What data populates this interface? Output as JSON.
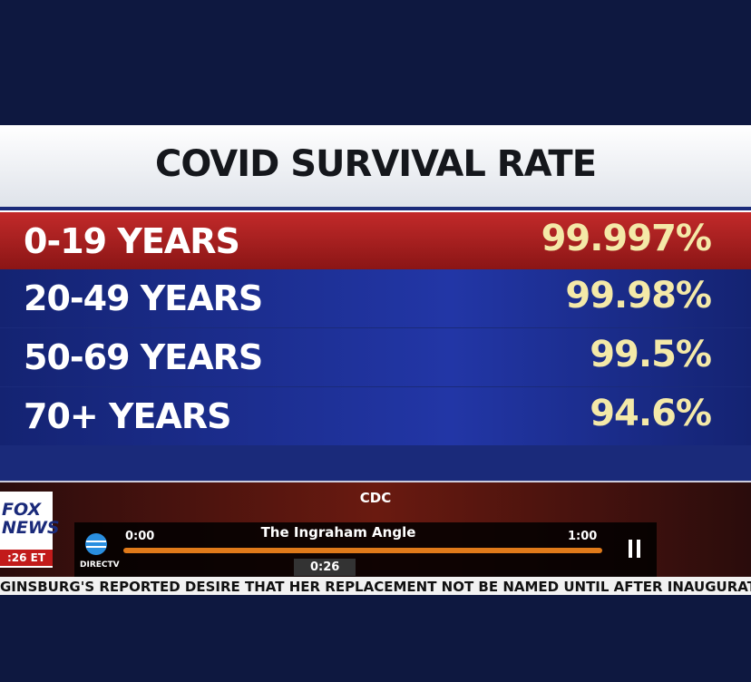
{
  "graphic": {
    "title": "COVID SURVIVAL RATE",
    "table": {
      "rows": [
        [
          "0-19 YEARS",
          "99.997%"
        ],
        [
          "20-49 YEARS",
          "99.98%"
        ],
        [
          "50-69 YEARS",
          "99.5%"
        ],
        [
          "70+ YEARS",
          "94.6%"
        ]
      ]
    },
    "source": "CDC"
  },
  "broadcast": {
    "logo": "FOX NEWS",
    "time": ":26 ET",
    "ticker": "GINSBURG'S REPORTED DESIRE THAT HER REPLACEMENT NOT BE NAMED UNTIL AFTER INAUGURATION"
  },
  "player": {
    "brand": "DIRECTV",
    "start": "0:00",
    "show": "The Ingraham Angle",
    "end": "1:00",
    "position": "0:26"
  }
}
